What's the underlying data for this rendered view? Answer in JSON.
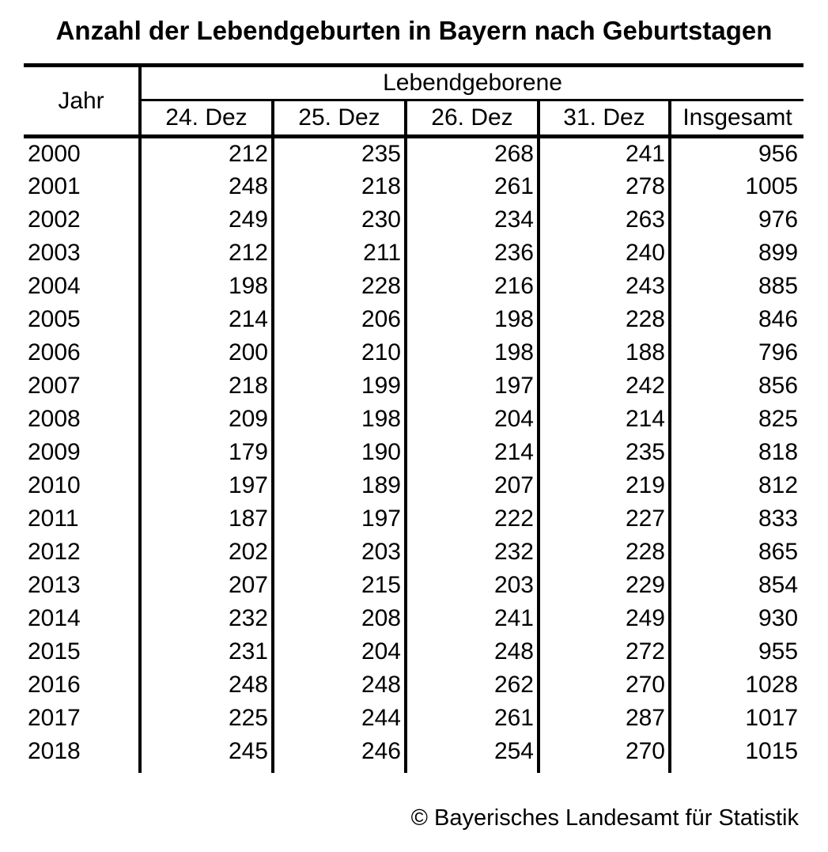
{
  "title": "Anzahl der Lebendgeburten in Bayern nach Geburtstagen",
  "chart_data": {
    "type": "table",
    "title": "Anzahl der Lebendgeburten in Bayern nach Geburtstagen",
    "row_header": "Jahr",
    "group_header": "Lebendgeborene",
    "columns": [
      "24. Dez",
      "25. Dez",
      "26. Dez",
      "31. Dez",
      "Insgesamt"
    ],
    "rows": [
      {
        "year": "2000",
        "values": [
          212,
          235,
          268,
          241,
          956
        ]
      },
      {
        "year": "2001",
        "values": [
          248,
          218,
          261,
          278,
          1005
        ]
      },
      {
        "year": "2002",
        "values": [
          249,
          230,
          234,
          263,
          976
        ]
      },
      {
        "year": "2003",
        "values": [
          212,
          211,
          236,
          240,
          899
        ]
      },
      {
        "year": "2004",
        "values": [
          198,
          228,
          216,
          243,
          885
        ]
      },
      {
        "year": "2005",
        "values": [
          214,
          206,
          198,
          228,
          846
        ]
      },
      {
        "year": "2006",
        "values": [
          200,
          210,
          198,
          188,
          796
        ]
      },
      {
        "year": "2007",
        "values": [
          218,
          199,
          197,
          242,
          856
        ]
      },
      {
        "year": "2008",
        "values": [
          209,
          198,
          204,
          214,
          825
        ]
      },
      {
        "year": "2009",
        "values": [
          179,
          190,
          214,
          235,
          818
        ]
      },
      {
        "year": "2010",
        "values": [
          197,
          189,
          207,
          219,
          812
        ]
      },
      {
        "year": "2011",
        "values": [
          187,
          197,
          222,
          227,
          833
        ]
      },
      {
        "year": "2012",
        "values": [
          202,
          203,
          232,
          228,
          865
        ]
      },
      {
        "year": "2013",
        "values": [
          207,
          215,
          203,
          229,
          854
        ]
      },
      {
        "year": "2014",
        "values": [
          232,
          208,
          241,
          249,
          930
        ]
      },
      {
        "year": "2015",
        "values": [
          231,
          204,
          248,
          272,
          955
        ]
      },
      {
        "year": "2016",
        "values": [
          248,
          248,
          262,
          270,
          1028
        ]
      },
      {
        "year": "2017",
        "values": [
          225,
          244,
          261,
          287,
          1017
        ]
      },
      {
        "year": "2018",
        "values": [
          245,
          246,
          254,
          270,
          1015
        ]
      }
    ],
    "text_color": "#000000",
    "background_color": "#ffffff",
    "grid": "vertical-lines-and-header-rules"
  },
  "footer": {
    "credit": "© Bayerisches Landesamt für Statistik"
  }
}
